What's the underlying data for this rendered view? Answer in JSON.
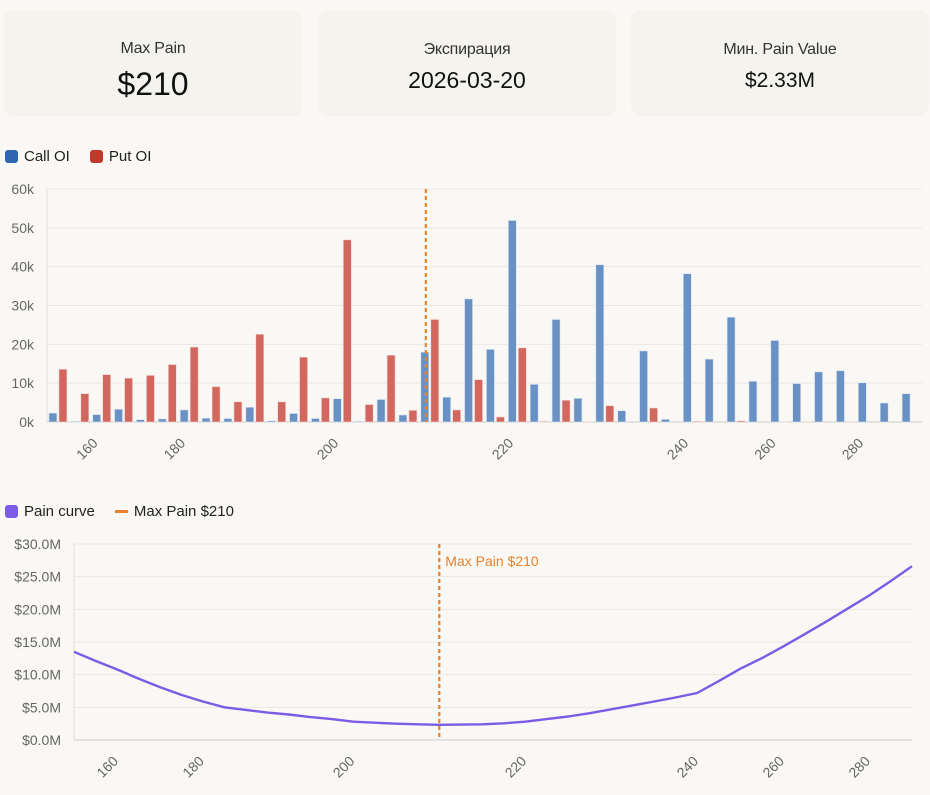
{
  "cards": [
    {
      "label": "Max Pain",
      "value": "$210"
    },
    {
      "label": "Экспирация",
      "value": "2026-03-20"
    },
    {
      "label": "Мин. Pain Value",
      "value": "$2.33M"
    }
  ],
  "colors": {
    "call": "#6a91c4",
    "call_legend": "#2f66b0",
    "put": "#d2675f",
    "put_legend": "#c0392b",
    "pain": "#7b5ce6",
    "max_pain": "#e9822d",
    "grid": "#ebe8e3",
    "axis_text": "#666666"
  },
  "chart_data": [
    {
      "type": "bar",
      "legend": [
        {
          "name": "Call OI"
        },
        {
          "name": "Put OI"
        }
      ],
      "categories": [
        150,
        155,
        160,
        165,
        170,
        175,
        180,
        185,
        187.5,
        190,
        192.5,
        195,
        197.5,
        200,
        202.5,
        205,
        207.5,
        210,
        212.5,
        215,
        217.5,
        220,
        222.5,
        225,
        227.5,
        230,
        232.5,
        235,
        237.5,
        240,
        245,
        250,
        255,
        260,
        265,
        270,
        275,
        280,
        285,
        290
      ],
      "tick_labels": [
        {
          "category": 160,
          "text": "160"
        },
        {
          "category": 180,
          "text": "180"
        },
        {
          "category": 200,
          "text": "200"
        },
        {
          "category": 220,
          "text": "220"
        },
        {
          "category": 240,
          "text": "240"
        },
        {
          "category": 260,
          "text": "260"
        },
        {
          "category": 280,
          "text": "280"
        }
      ],
      "y_ticks": [
        {
          "v": 0,
          "text": "0k"
        },
        {
          "v": 10000,
          "text": "10k"
        },
        {
          "v": 20000,
          "text": "20k"
        },
        {
          "v": 30000,
          "text": "30k"
        },
        {
          "v": 40000,
          "text": "40k"
        },
        {
          "v": 50000,
          "text": "50k"
        },
        {
          "v": 60000,
          "text": "60k"
        }
      ],
      "ylim": [
        0,
        60000
      ],
      "max_pain_category": 210,
      "series": [
        {
          "name": "Call OI",
          "values": [
            2300,
            200,
            1900,
            3300,
            600,
            800,
            3100,
            1000,
            900,
            3800,
            300,
            2200,
            900,
            6000,
            200,
            5800,
            1800,
            18000,
            6400,
            31700,
            18700,
            51900,
            9700,
            26400,
            6100,
            40500,
            2900,
            18300,
            700,
            38200,
            16200,
            27000,
            10500,
            21000,
            9900,
            12900,
            13200,
            10100,
            4900,
            7300
          ]
        },
        {
          "name": "Put OI",
          "values": [
            13600,
            7300,
            12200,
            11300,
            12000,
            14800,
            19300,
            9100,
            5200,
            22600,
            5200,
            16700,
            6200,
            46900,
            4500,
            17200,
            3000,
            26400,
            3100,
            10900,
            1300,
            19100,
            200,
            5600,
            100,
            4200,
            0,
            3600,
            0,
            200,
            0,
            300,
            0,
            100,
            100,
            0,
            100,
            0,
            0,
            0
          ]
        }
      ]
    },
    {
      "type": "line",
      "legend": [
        {
          "name": "Pain curve"
        },
        {
          "name": "Max Pain $210"
        }
      ],
      "annotation": "Max Pain $210",
      "categories": [
        150,
        155,
        160,
        165,
        170,
        175,
        180,
        185,
        187.5,
        190,
        192.5,
        195,
        197.5,
        200,
        202.5,
        205,
        207.5,
        210,
        212.5,
        215,
        217.5,
        220,
        222.5,
        225,
        227.5,
        230,
        232.5,
        235,
        237.5,
        240,
        245,
        250,
        255,
        260,
        265,
        270,
        275,
        280,
        285,
        290
      ],
      "tick_labels": [
        {
          "category": 160,
          "text": "160"
        },
        {
          "category": 180,
          "text": "180"
        },
        {
          "category": 200,
          "text": "200"
        },
        {
          "category": 220,
          "text": "220"
        },
        {
          "category": 240,
          "text": "240"
        },
        {
          "category": 260,
          "text": "260"
        },
        {
          "category": 280,
          "text": "280"
        }
      ],
      "y_ticks": [
        {
          "v": 0,
          "text": "$0.0M"
        },
        {
          "v": 5,
          "text": "$5.0M"
        },
        {
          "v": 10,
          "text": "$10.0M"
        },
        {
          "v": 15,
          "text": "$15.0M"
        },
        {
          "v": 20,
          "text": "$20.0M"
        },
        {
          "v": 25,
          "text": "$25.0M"
        },
        {
          "v": 30,
          "text": "$30.0M"
        }
      ],
      "ylabel_units": "$M",
      "ylim": [
        0,
        30
      ],
      "max_pain_category": 210,
      "series": [
        {
          "name": "Pain curve",
          "values": [
            13.5,
            12.1,
            10.8,
            9.4,
            8.1,
            6.9,
            5.9,
            5.0,
            4.6,
            4.2,
            3.9,
            3.5,
            3.2,
            2.8,
            2.65,
            2.5,
            2.4,
            2.33,
            2.35,
            2.4,
            2.55,
            2.8,
            3.2,
            3.6,
            4.1,
            4.7,
            5.3,
            5.9,
            6.5,
            7.2,
            9.0,
            10.9,
            12.5,
            14.3,
            16.2,
            18.1,
            20.1,
            22.1,
            24.3,
            26.6
          ]
        }
      ]
    }
  ]
}
